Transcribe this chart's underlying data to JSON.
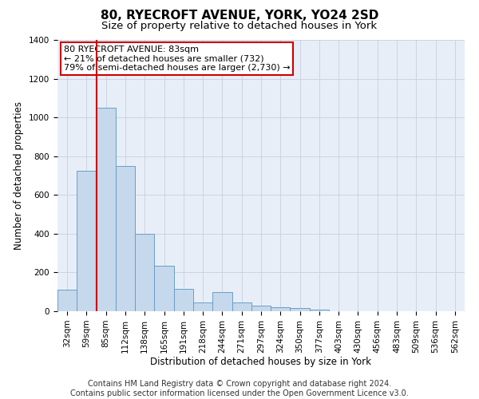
{
  "title": "80, RYECROFT AVENUE, YORK, YO24 2SD",
  "subtitle": "Size of property relative to detached houses in York",
  "xlabel": "Distribution of detached houses by size in York",
  "ylabel": "Number of detached properties",
  "footer_line1": "Contains HM Land Registry data © Crown copyright and database right 2024.",
  "footer_line2": "Contains public sector information licensed under the Open Government Licence v3.0.",
  "annotation_line1": "80 RYECROFT AVENUE: 83sqm",
  "annotation_line2": "← 21% of detached houses are smaller (732)",
  "annotation_line3": "79% of semi-detached houses are larger (2,730) →",
  "bar_labels": [
    "32sqm",
    "59sqm",
    "85sqm",
    "112sqm",
    "138sqm",
    "165sqm",
    "191sqm",
    "218sqm",
    "244sqm",
    "271sqm",
    "297sqm",
    "324sqm",
    "350sqm",
    "377sqm",
    "403sqm",
    "430sqm",
    "456sqm",
    "483sqm",
    "509sqm",
    "536sqm",
    "562sqm"
  ],
  "bar_values": [
    110,
    725,
    1050,
    750,
    400,
    235,
    115,
    45,
    100,
    45,
    30,
    20,
    15,
    10,
    0,
    0,
    0,
    0,
    0,
    0,
    0
  ],
  "bar_color": "#c5d8ec",
  "bar_edge_color": "#6a9ec5",
  "vline_color": "#cc0000",
  "vline_bin": 2,
  "ylim": [
    0,
    1400
  ],
  "yticks": [
    0,
    200,
    400,
    600,
    800,
    1000,
    1200,
    1400
  ],
  "grid_color": "#c8d0dc",
  "bg_color": "#e8eef8",
  "annotation_box_edge_color": "#cc0000",
  "title_fontsize": 11,
  "subtitle_fontsize": 9.5,
  "axis_label_fontsize": 8.5,
  "tick_fontsize": 7.5,
  "annotation_fontsize": 8,
  "footer_fontsize": 7
}
